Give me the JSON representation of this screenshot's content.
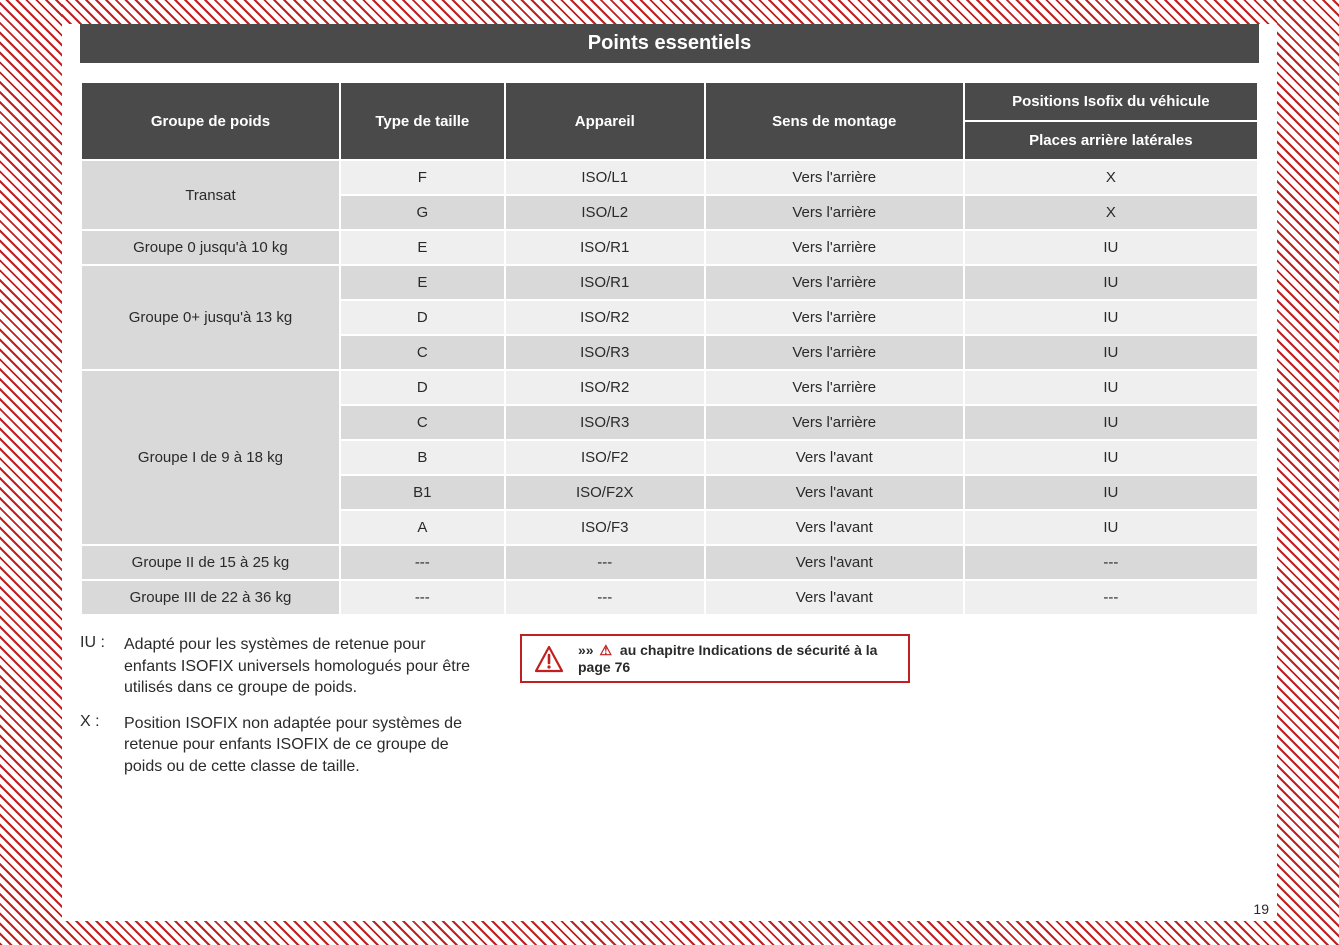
{
  "page_title": "Points essentiels",
  "page_number": "19",
  "colors": {
    "header_bg": "#4a4a4a",
    "header_text": "#ffffff",
    "row_light": "#efefef",
    "row_dark": "#d9d9d9",
    "border": "#ffffff",
    "accent": "#c02020",
    "text": "#2a2a2a",
    "page_bg": "#ffffff"
  },
  "table": {
    "type": "table",
    "columns": {
      "group": "Groupe de poids",
      "size": "Type de taille",
      "device": "Appareil",
      "direction": "Sens de montage",
      "positions_top": "Positions Isofix du véhicule",
      "positions_sub": "Places arrière latérales"
    },
    "col_widths_pct": [
      22,
      14,
      17,
      22,
      25
    ],
    "groups": [
      {
        "label": "Transat",
        "rows": [
          {
            "size": "F",
            "device": "ISO/L1",
            "direction": "Vers l'arrière",
            "pos": "X"
          },
          {
            "size": "G",
            "device": "ISO/L2",
            "direction": "Vers l'arrière",
            "pos": "X"
          }
        ]
      },
      {
        "label": "Groupe 0 jusqu'à 10 kg",
        "rows": [
          {
            "size": "E",
            "device": "ISO/R1",
            "direction": "Vers l'arrière",
            "pos": "IU"
          }
        ]
      },
      {
        "label": "Groupe 0+ jusqu'à 13 kg",
        "rows": [
          {
            "size": "E",
            "device": "ISO/R1",
            "direction": "Vers l'arrière",
            "pos": "IU"
          },
          {
            "size": "D",
            "device": "ISO/R2",
            "direction": "Vers l'arrière",
            "pos": "IU"
          },
          {
            "size": "C",
            "device": "ISO/R3",
            "direction": "Vers l'arrière",
            "pos": "IU"
          }
        ]
      },
      {
        "label": "Groupe I de 9 à 18 kg",
        "rows": [
          {
            "size": "D",
            "device": "ISO/R2",
            "direction": "Vers l'arrière",
            "pos": "IU"
          },
          {
            "size": "C",
            "device": "ISO/R3",
            "direction": "Vers l'arrière",
            "pos": "IU"
          },
          {
            "size": "B",
            "device": "ISO/F2",
            "direction": "Vers l'avant",
            "pos": "IU"
          },
          {
            "size": "B1",
            "device": "ISO/F2X",
            "direction": "Vers l'avant",
            "pos": "IU"
          },
          {
            "size": "A",
            "device": "ISO/F3",
            "direction": "Vers l'avant",
            "pos": "IU"
          }
        ]
      },
      {
        "label": "Groupe II de 15 à 25 kg",
        "rows": [
          {
            "size": "---",
            "device": "---",
            "direction": "Vers l'avant",
            "pos": "---"
          }
        ]
      },
      {
        "label": "Groupe III de 22 à 36 kg",
        "rows": [
          {
            "size": "---",
            "device": "---",
            "direction": "Vers l'avant",
            "pos": "---"
          }
        ]
      }
    ]
  },
  "legend": [
    {
      "key": "IU :",
      "text": "Adapté pour les systèmes de retenue pour enfants ISOFIX universels homolo­gués pour être utilisés dans ce groupe de poids."
    },
    {
      "key": "X :",
      "text": "Position ISOFIX non adaptée pour systè­mes de retenue pour enfants ISOFIX de ce groupe de poids ou de cette classe de taille."
    }
  ],
  "warning": {
    "chevrons": "»»",
    "mini_triangle": "⚠",
    "text": "au chapitre Indications de sécurité à la page 76"
  }
}
